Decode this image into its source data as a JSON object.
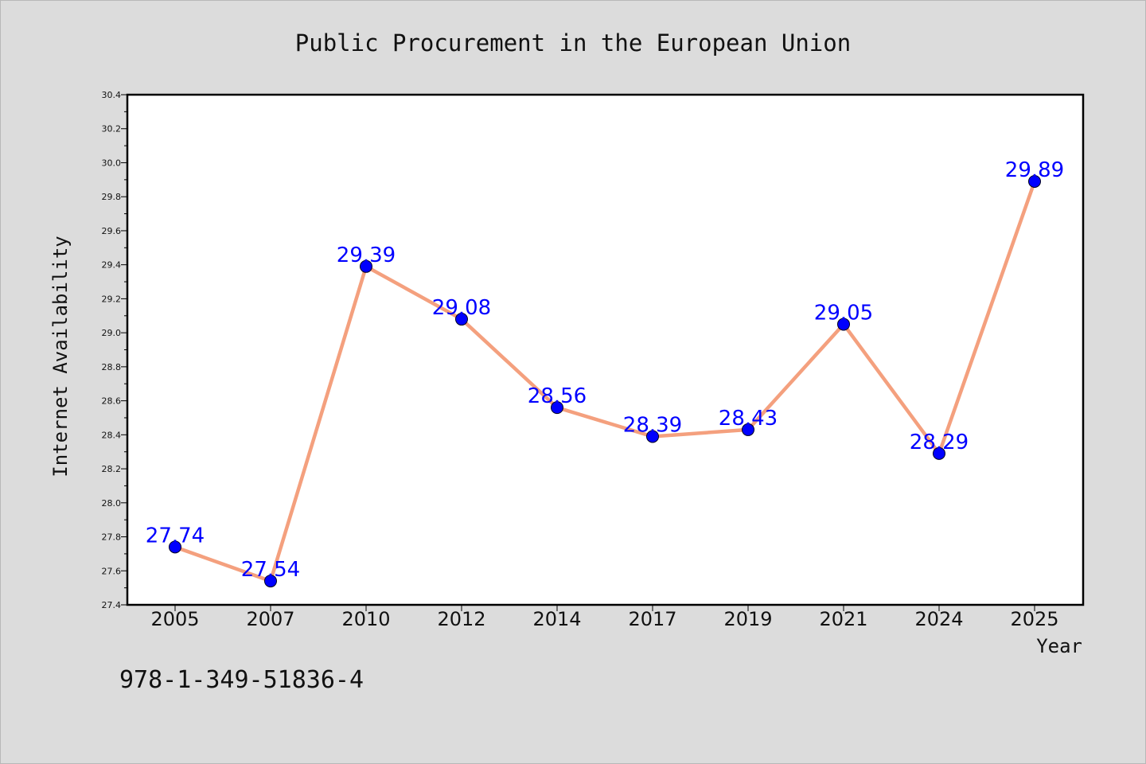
{
  "chart_data": {
    "type": "line",
    "title": "Public Procurement in the European Union",
    "xlabel": "Year",
    "ylabel": "Internet Availability",
    "categories": [
      "2005",
      "2007",
      "2010",
      "2012",
      "2014",
      "2017",
      "2019",
      "2021",
      "2024",
      "2025"
    ],
    "series": [
      {
        "values": [
          27.74,
          27.54,
          29.39,
          29.08,
          28.56,
          28.39,
          28.43,
          29.05,
          28.29,
          29.89
        ],
        "line_color": "#f4a07e",
        "marker_color": "#0000ff",
        "label_color": "#0000ff"
      }
    ],
    "data_labels": [
      "27.74",
      "27.54",
      "29.39",
      "29.08",
      "28.56",
      "28.39",
      "28.43",
      "29.05",
      "28.29",
      "29.89"
    ],
    "ylim": [
      27.4,
      30.4
    ],
    "yticks": [
      "27.4",
      "27.6",
      "27.8",
      "28.0",
      "28.2",
      "28.4",
      "28.6",
      "28.8",
      "29.0",
      "29.2",
      "29.4",
      "29.6",
      "29.8",
      "30.0",
      "30.2",
      "30.4"
    ],
    "grid": false,
    "legend": "none"
  },
  "footnote": "978-1-349-51836-4",
  "colors": {
    "background": "#dcdcdc",
    "plot_background": "#ffffff"
  }
}
